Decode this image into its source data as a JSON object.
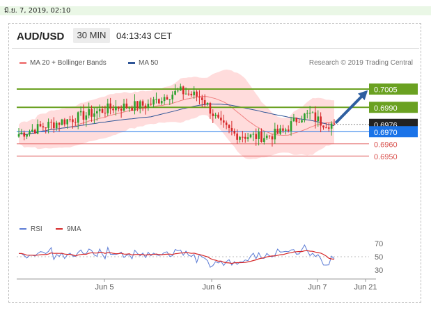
{
  "header": {
    "datetime": "มิ.ย. 7, 2019, 02:10",
    "pair": "AUD/USD",
    "timeframe": "30 MIN",
    "time": "04:13:43 CET",
    "credit": "Research © 2019 Trading Central"
  },
  "legend": {
    "ma20": "MA 20 + Bollinger Bands",
    "ma50": "MA 50",
    "ma20_color": "#f08080",
    "ma50_color": "#2f5597"
  },
  "colors": {
    "up": "#2ca02c",
    "down": "#d62728",
    "band": "#ffd6d6",
    "resistance": "#6aa121",
    "current": "#222222",
    "pivot": "#1a73e8",
    "support": "#e06060",
    "arrow": "#2f5fa0",
    "rsi": "#5b7bd5",
    "rsi_ma": "#d62728"
  },
  "chart_data": [
    {
      "type": "candlestick",
      "title": "AUD/USD",
      "x_ticks": [
        "Jun 5",
        "Jun 6",
        "Jun 7",
        "Jun 21"
      ],
      "ylim": [
        0.6945,
        0.7015
      ],
      "levels": [
        {
          "value": 0.7005,
          "label": "0.7005",
          "kind": "resistance"
        },
        {
          "value": 0.699,
          "label": "0.6990",
          "kind": "resistance"
        },
        {
          "value": 0.6976,
          "label": "0.6976",
          "kind": "current"
        },
        {
          "value": 0.697,
          "label": "0.6970",
          "kind": "pivot"
        },
        {
          "value": 0.696,
          "label": "0.6960",
          "kind": "support"
        },
        {
          "value": 0.695,
          "label": "0.6950",
          "kind": "support"
        }
      ],
      "forecast_target": 0.7005,
      "last_close": 0.6976
    },
    {
      "type": "line",
      "title": "RSI",
      "series_names": [
        "RSI",
        "9MA"
      ],
      "ylim": [
        20,
        80
      ],
      "y_ticks": [
        70,
        50,
        30
      ],
      "y_labels": [
        "70",
        "50",
        "30"
      ]
    }
  ]
}
